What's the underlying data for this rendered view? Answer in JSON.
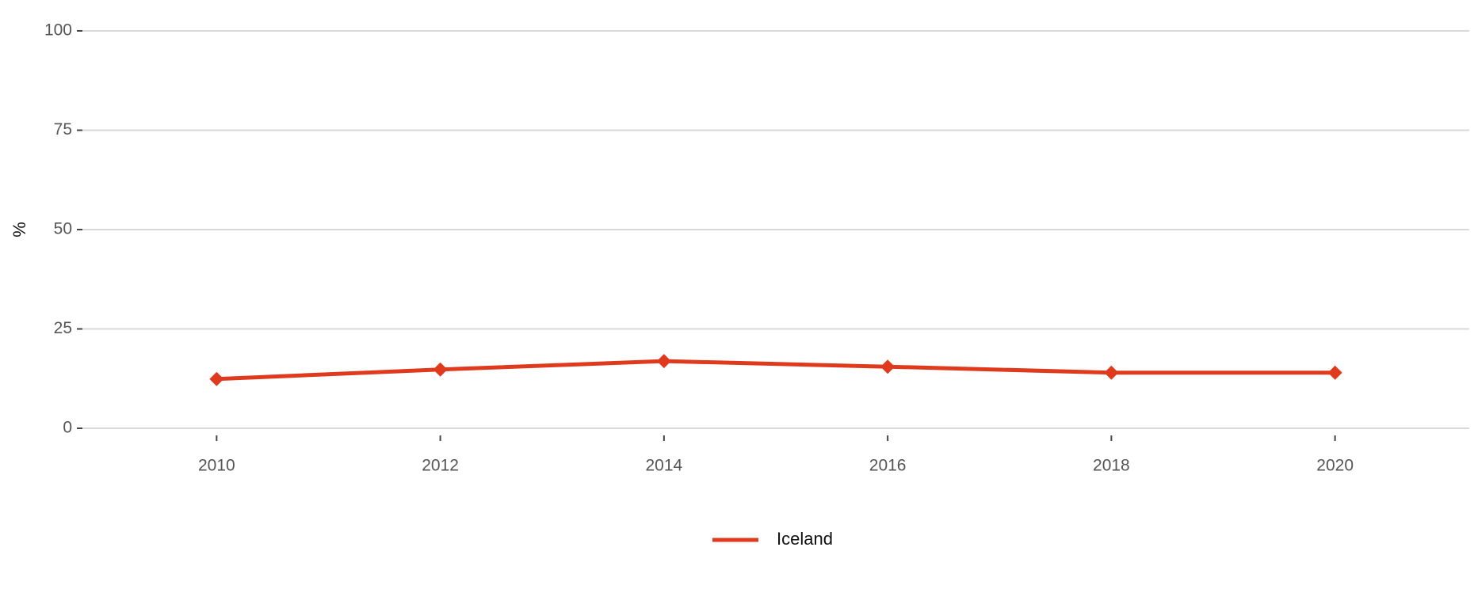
{
  "chart_data": {
    "type": "line",
    "y_label": "%",
    "x": [
      2010,
      2012,
      2014,
      2016,
      2018,
      2020
    ],
    "series": [
      {
        "name": "Iceland",
        "color": "#e03a1e",
        "values": [
          12.4,
          14.8,
          16.9,
          15.5,
          14.0,
          14.0
        ]
      }
    ],
    "xlim": [
      2008.8,
      2021.2
    ],
    "xticks": [
      2010,
      2012,
      2014,
      2016,
      2018,
      2020
    ],
    "ylim": [
      0,
      100
    ],
    "yticks": [
      0,
      25,
      50,
      75,
      100
    ],
    "grid": true,
    "legend": "bottom",
    "marker": "diamond"
  }
}
